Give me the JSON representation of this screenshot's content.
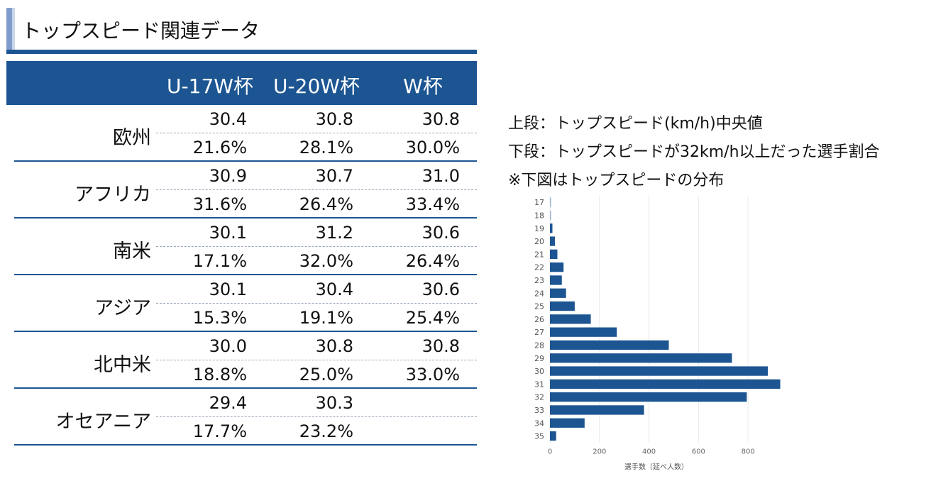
{
  "title": "トップスピード関連データ",
  "columns": [
    "U-17W杯",
    "U-20W杯",
    "W杯"
  ],
  "regions": [
    {
      "name": "欧州",
      "median": [
        "30.4",
        "30.8",
        "30.8"
      ],
      "ratio": [
        "21.6%",
        "28.1%",
        "30.0%"
      ]
    },
    {
      "name": "アフリカ",
      "median": [
        "30.9",
        "30.7",
        "31.0"
      ],
      "ratio": [
        "31.6%",
        "26.4%",
        "33.4%"
      ]
    },
    {
      "name": "南米",
      "median": [
        "30.1",
        "31.2",
        "30.6"
      ],
      "ratio": [
        "17.1%",
        "32.0%",
        "26.4%"
      ]
    },
    {
      "name": "アジア",
      "median": [
        "30.1",
        "30.4",
        "30.6"
      ],
      "ratio": [
        "15.3%",
        "19.1%",
        "25.4%"
      ]
    },
    {
      "name": "北中米",
      "median": [
        "30.0",
        "30.8",
        "30.8"
      ],
      "ratio": [
        "18.8%",
        "25.0%",
        "33.0%"
      ]
    },
    {
      "name": "オセアニア",
      "median": [
        "29.4",
        "30.3",
        ""
      ],
      "ratio": [
        "17.7%",
        "23.2%",
        ""
      ]
    }
  ],
  "legend": {
    "line1": "上段：トップスピード(km/h)中央値",
    "line2": "下段：トップスピードが32km/h以上だった選手割合",
    "line3": "※下図はトップスピードの分布"
  },
  "colors": {
    "accent": "#1c5592",
    "bar": "#1c5592"
  },
  "chart_data": {
    "type": "bar",
    "orientation": "horizontal",
    "categories": [
      "17",
      "18",
      "19",
      "20",
      "21",
      "22",
      "23",
      "24",
      "25",
      "26",
      "27",
      "28",
      "29",
      "30",
      "31",
      "32",
      "33",
      "34",
      "35"
    ],
    "values": [
      2,
      2,
      10,
      20,
      30,
      55,
      48,
      65,
      100,
      165,
      270,
      480,
      735,
      880,
      930,
      795,
      380,
      140,
      25
    ],
    "xlabel": "選手数（延べ人数）",
    "ylabel": "",
    "xlim": [
      0,
      960
    ],
    "xticks": [
      0,
      200,
      400,
      600,
      800
    ],
    "grid": true
  }
}
